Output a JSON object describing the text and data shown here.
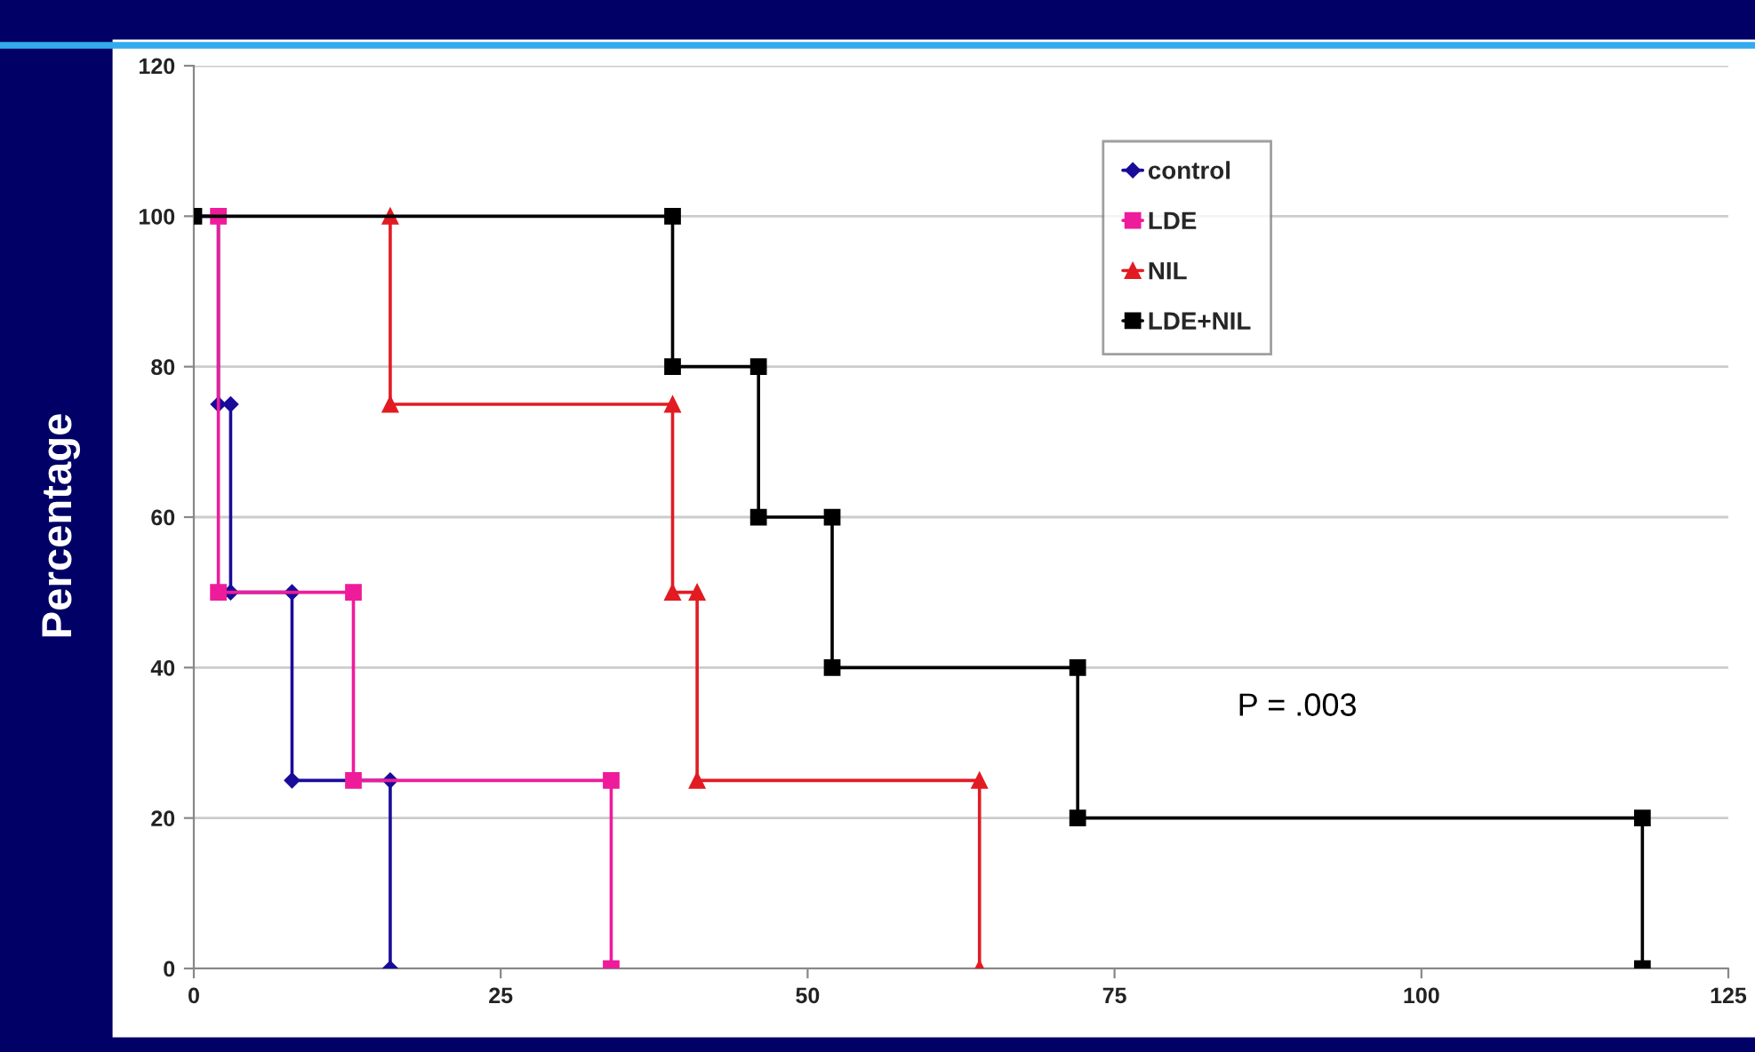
{
  "chart_data": {
    "type": "line",
    "ylabel": "Percentage",
    "xlim": [
      0,
      125
    ],
    "xticks": [
      0,
      25,
      50,
      75,
      100,
      125
    ],
    "ylim": [
      0,
      120
    ],
    "yticks": [
      0,
      20,
      40,
      60,
      80,
      100,
      120
    ],
    "grid": "y",
    "legend": "top right",
    "line_style": "solid",
    "series": [
      {
        "name": "control",
        "color": "#1a0c9a",
        "marker": "diamond",
        "x": [
          0,
          2,
          2,
          3,
          3,
          8,
          8,
          16,
          16
        ],
        "values": [
          100,
          100,
          75,
          75,
          50,
          50,
          25,
          25,
          0
        ]
      },
      {
        "name": "LDE",
        "color": "#ee1c9a",
        "marker": "square",
        "x": [
          2,
          2,
          13,
          13,
          34,
          34
        ],
        "values": [
          100,
          50,
          50,
          25,
          25,
          0
        ]
      },
      {
        "name": "NIL",
        "color": "#e21b23",
        "marker": "triangle",
        "x": [
          16,
          16,
          39,
          39,
          41,
          41,
          64,
          64
        ],
        "values": [
          100,
          75,
          75,
          50,
          50,
          25,
          25,
          0
        ]
      },
      {
        "name": "LDE+NIL",
        "color": "#000000",
        "marker": "square",
        "x": [
          0,
          39,
          39,
          46,
          46,
          52,
          52,
          72,
          72,
          118,
          118
        ],
        "values": [
          100,
          100,
          80,
          80,
          60,
          60,
          40,
          40,
          20,
          20,
          0
        ]
      }
    ],
    "annotations": [
      "P = .003"
    ]
  }
}
